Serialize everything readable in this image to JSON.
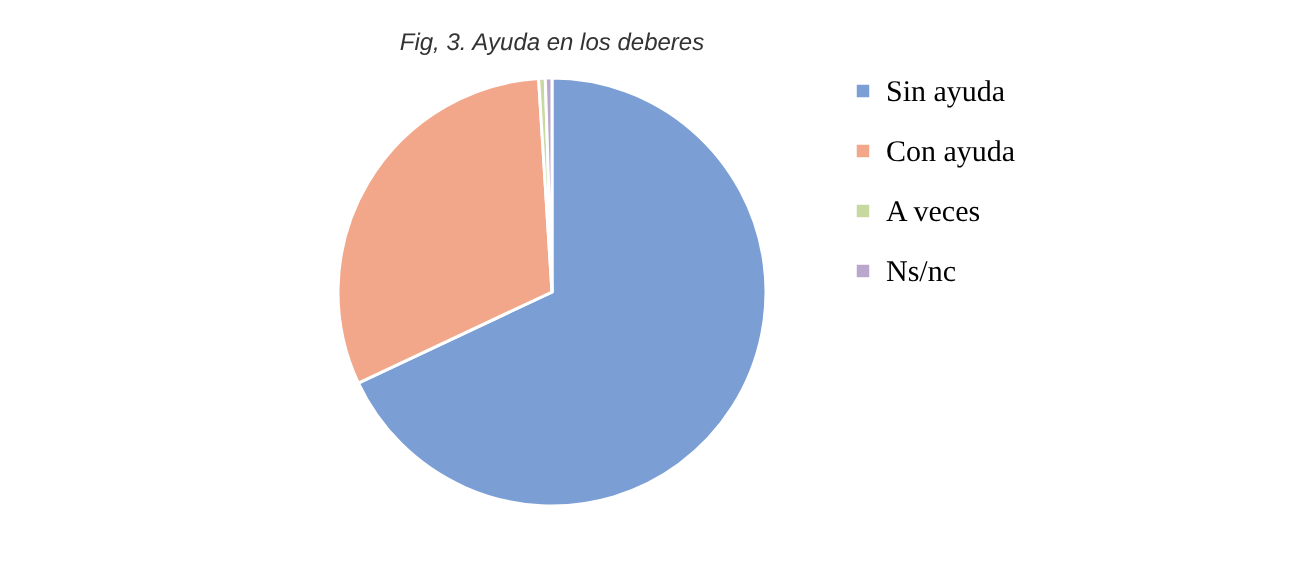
{
  "chart_data": {
    "type": "pie",
    "title": "Fig, 3. Ayuda en los deberes",
    "categories": [
      "Sin ayuda",
      "Con ayuda",
      "A veces",
      "Ns/nc"
    ],
    "values": [
      68,
      31,
      0.5,
      0.5
    ],
    "colors": [
      "#7b9fd4",
      "#f2a78a",
      "#c7d9a0",
      "#b9a7cc"
    ],
    "legend": "right"
  }
}
